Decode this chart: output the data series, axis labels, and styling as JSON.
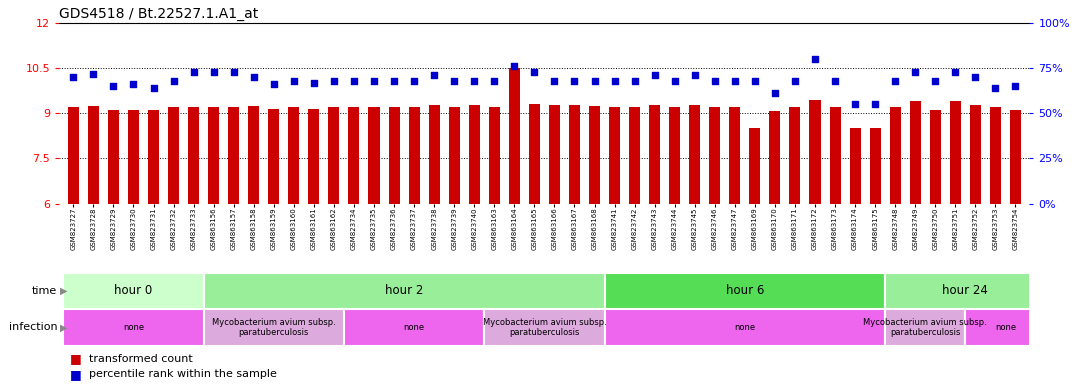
{
  "title": "GDS4518 / Bt.22527.1.A1_at",
  "samples": [
    "GSM823727",
    "GSM823728",
    "GSM823729",
    "GSM823730",
    "GSM823731",
    "GSM823732",
    "GSM823733",
    "GSM863156",
    "GSM863157",
    "GSM863158",
    "GSM863159",
    "GSM863160",
    "GSM863161",
    "GSM863162",
    "GSM823734",
    "GSM823735",
    "GSM823736",
    "GSM823737",
    "GSM823738",
    "GSM823739",
    "GSM823740",
    "GSM863163",
    "GSM863164",
    "GSM863165",
    "GSM863166",
    "GSM863167",
    "GSM863168",
    "GSM823741",
    "GSM823742",
    "GSM823743",
    "GSM823744",
    "GSM823745",
    "GSM823746",
    "GSM823747",
    "GSM863169",
    "GSM863170",
    "GSM863171",
    "GSM863172",
    "GSM863173",
    "GSM863174",
    "GSM863175",
    "GSM823748",
    "GSM823749",
    "GSM823750",
    "GSM823751",
    "GSM823752",
    "GSM823753",
    "GSM823754"
  ],
  "bar_values": [
    9.2,
    9.25,
    9.1,
    9.12,
    9.12,
    9.2,
    9.2,
    9.2,
    9.2,
    9.25,
    9.15,
    9.2,
    9.15,
    9.22,
    9.2,
    9.2,
    9.22,
    9.2,
    9.28,
    9.22,
    9.28,
    9.22,
    10.5,
    9.32,
    9.28,
    9.28,
    9.25,
    9.2,
    9.22,
    9.28,
    9.22,
    9.28,
    9.2,
    9.2,
    8.5,
    9.08,
    9.2,
    9.45,
    9.22,
    8.5,
    8.5,
    9.22,
    9.4,
    9.1,
    9.4,
    9.28,
    9.2,
    9.1
  ],
  "percentile_values": [
    70,
    72,
    65,
    66,
    64,
    68,
    73,
    73,
    73,
    70,
    66,
    68,
    67,
    68,
    68,
    68,
    68,
    68,
    71,
    68,
    68,
    68,
    76,
    73,
    68,
    68,
    68,
    68,
    68,
    71,
    68,
    71,
    68,
    68,
    68,
    61,
    68,
    80,
    68,
    55,
    55,
    68,
    73,
    68,
    73,
    70,
    64,
    65
  ],
  "ylim": [
    6,
    12
  ],
  "yticks": [
    6,
    7.5,
    9,
    10.5,
    12
  ],
  "ytick_labels": [
    "6",
    "7.5",
    "9",
    "10.5",
    "12"
  ],
  "y2lim": [
    0,
    100
  ],
  "y2ticks": [
    0,
    25,
    50,
    75,
    100
  ],
  "y2tick_labels": [
    "0%",
    "25%",
    "50%",
    "75%",
    "100%"
  ],
  "bar_color": "#cc0000",
  "dot_color": "#0000cc",
  "bar_width": 0.55,
  "time_groups": [
    {
      "label": "hour 0",
      "start": 0,
      "end": 7,
      "color": "#ccffcc"
    },
    {
      "label": "hour 2",
      "start": 7,
      "end": 27,
      "color": "#99ee99"
    },
    {
      "label": "hour 6",
      "start": 27,
      "end": 41,
      "color": "#55dd55"
    },
    {
      "label": "hour 24",
      "start": 41,
      "end": 49,
      "color": "#99ee99"
    }
  ],
  "infection_groups": [
    {
      "label": "none",
      "start": 0,
      "end": 7,
      "color": "#ee66ee"
    },
    {
      "label": "Mycobacterium avium subsp.\nparatuberculosis",
      "start": 7,
      "end": 14,
      "color": "#ddaadd"
    },
    {
      "label": "none",
      "start": 14,
      "end": 21,
      "color": "#ee66ee"
    },
    {
      "label": "Mycobacterium avium subsp.\nparatuberculosis",
      "start": 21,
      "end": 27,
      "color": "#ddaadd"
    },
    {
      "label": "none",
      "start": 27,
      "end": 41,
      "color": "#ee66ee"
    },
    {
      "label": "Mycobacterium avium subsp.\nparatuberculosis",
      "start": 41,
      "end": 45,
      "color": "#ddaadd"
    },
    {
      "label": "none",
      "start": 45,
      "end": 49,
      "color": "#ee66ee"
    }
  ],
  "legend_red_label": "transformed count",
  "legend_blue_label": "percentile rank within the sample"
}
